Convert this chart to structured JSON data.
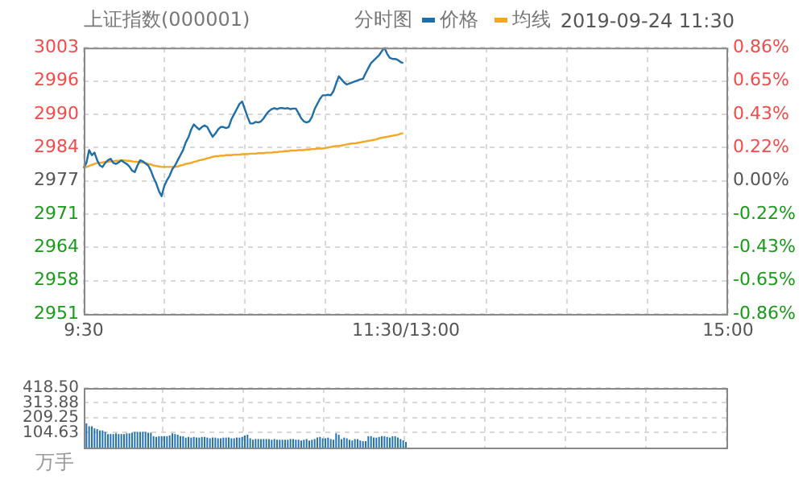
{
  "chart_data": [
    {
      "type": "line",
      "title": "上证指数(000001)",
      "subtitle": "分时图",
      "annotations": [
        "2019-09-24 11:30"
      ],
      "legend": "top right",
      "grid": true,
      "marker": "none",
      "categories": [
        "9:30",
        null,
        null,
        null,
        null,
        null,
        null,
        null,
        null,
        null,
        null,
        null,
        null,
        null,
        null,
        null,
        null,
        null,
        null,
        null,
        null,
        null,
        null,
        null,
        null,
        null,
        null,
        null,
        null,
        null,
        null,
        null,
        null,
        null,
        null,
        null,
        null,
        null,
        null,
        null,
        null,
        null,
        null,
        null,
        null,
        null,
        null,
        null,
        null,
        null,
        null,
        null,
        null,
        null,
        null,
        null,
        null,
        null,
        null,
        null,
        null,
        null,
        null,
        null,
        null,
        null,
        null,
        null,
        null,
        null,
        null,
        null,
        null,
        null,
        null,
        null,
        null,
        null,
        null,
        null,
        null,
        null,
        null,
        null,
        null,
        null,
        null,
        null,
        null,
        null,
        null,
        null,
        null,
        null,
        null,
        null,
        null,
        null,
        null,
        null,
        null,
        null,
        null,
        null,
        null,
        null,
        null,
        null,
        null,
        null,
        null,
        null,
        null,
        null,
        null,
        null,
        null,
        null,
        null,
        null,
        "11:30/13:00",
        null,
        null,
        null,
        null,
        null,
        null,
        null,
        null,
        null,
        null,
        null,
        null,
        null,
        null,
        null,
        null,
        null,
        null,
        null,
        null,
        null,
        null,
        null,
        null,
        null,
        null,
        null,
        null,
        null,
        null,
        null,
        null,
        null,
        null,
        null,
        null,
        null,
        null,
        null,
        null,
        null,
        null,
        null,
        null,
        null,
        null,
        null,
        null,
        null,
        null,
        null,
        null,
        null,
        null,
        null,
        null,
        null,
        null,
        null,
        null,
        null,
        null,
        null,
        null,
        null,
        null,
        null,
        null,
        null,
        null,
        null,
        null,
        null,
        null,
        null,
        null,
        null,
        null,
        null,
        null,
        null,
        null,
        null,
        null,
        null,
        null,
        null,
        null,
        null,
        null,
        null,
        null,
        null,
        null,
        null,
        null,
        null,
        null,
        null,
        null,
        null,
        null,
        null,
        null,
        null,
        null,
        null,
        null,
        null,
        null,
        null,
        null,
        null,
        null,
        null,
        null,
        null,
        null,
        null,
        "15:00"
      ],
      "ylim": [
        2951,
        3003
      ],
      "yticks": [
        2951,
        {
          "value": 2957.5,
          "label": "2958"
        },
        2964,
        {
          "value": 2970.5,
          "label": "2971"
        },
        2977,
        {
          "value": 2983.5,
          "label": "2984"
        },
        2990,
        {
          "value": 2996.5,
          "label": "2996"
        },
        3003
      ],
      "y2lim": [
        -0.86,
        0.86
      ],
      "y2ticks": [
        {
          "value": -0.86,
          "label": "-0.86%"
        },
        {
          "value": -0.645,
          "label": "-0.65%"
        },
        {
          "value": -0.43,
          "label": "-0.43%"
        },
        {
          "value": -0.215,
          "label": "-0.22%"
        },
        {
          "value": 0,
          "label": "0.00%"
        },
        {
          "value": 0.215,
          "label": "0.22%"
        },
        {
          "value": 0.43,
          "label": "0.43%"
        },
        {
          "value": 0.645,
          "label": "0.65%"
        },
        {
          "value": 0.86,
          "label": "0.86%"
        }
      ],
      "series": [
        {
          "name": "价格",
          "color": "#1f6ea8",
          "values": [
            2979.5,
            2980.5,
            2983,
            2982,
            2982.5,
            2981,
            2980,
            2979.7,
            2980.5,
            2981,
            2981.3,
            2980.5,
            2980.3,
            2980.6,
            2981,
            2980.6,
            2980.3,
            2979.8,
            2979,
            2978.7,
            2980,
            2981,
            2980.8,
            2980.4,
            2980,
            2979,
            2977.6,
            2976.5,
            2975,
            2974,
            2976,
            2977.1,
            2978,
            2979.3,
            2980,
            2981,
            2982,
            2983,
            2984.5,
            2985.5,
            2987,
            2988,
            2987.5,
            2987,
            2987.5,
            2987.8,
            2987.5,
            2986.5,
            2985.6,
            2986.2,
            2987,
            2987.5,
            2987.5,
            2987.3,
            2987.5,
            2989,
            2990,
            2991,
            2992,
            2992.5,
            2991,
            2989.5,
            2988.2,
            2988.2,
            2988.5,
            2988.4,
            2988.6,
            2989.2,
            2990,
            2990.6,
            2991,
            2991.2,
            2991,
            2991.2,
            2991.2,
            2991.1,
            2991.2,
            2991,
            2991.1,
            2991.1,
            2990.2,
            2989.2,
            2988.6,
            2988.4,
            2988.6,
            2989.5,
            2991,
            2992,
            2993,
            2993.7,
            2993.7,
            2993.8,
            2993.7,
            2994.5,
            2996,
            2997.4,
            2996.8,
            2996.2,
            2995.8,
            2996,
            2996.2,
            2996.4,
            2996.6,
            2996.8,
            2996.9,
            2998,
            2999,
            3000,
            3000.5,
            3001,
            3001.5,
            3002.3,
            3003,
            3001.8,
            3001,
            3000.8,
            3000.8,
            3000.6,
            3000.2,
            3000,
            null,
            null,
            null,
            null,
            null,
            null,
            null,
            null,
            null,
            null,
            null,
            null,
            null,
            null,
            null,
            null,
            null,
            null,
            null,
            null,
            null,
            null,
            null,
            null,
            null,
            null,
            null,
            null,
            null,
            null,
            null,
            null,
            null,
            null,
            null,
            null,
            null,
            null,
            null,
            null,
            null,
            null,
            null,
            null,
            null,
            null,
            null,
            null,
            null,
            null,
            null,
            null,
            null,
            null,
            null,
            null,
            null,
            null,
            null,
            null,
            null,
            null,
            null,
            null,
            null,
            null,
            null,
            null,
            null,
            null,
            null,
            null,
            null,
            null,
            null,
            null,
            null,
            null,
            null,
            null,
            null,
            null,
            null,
            null,
            null,
            null,
            null,
            null,
            null,
            null,
            null,
            null,
            null,
            null,
            null,
            null,
            null,
            null,
            null,
            null,
            null,
            null,
            null,
            null,
            null,
            null,
            null,
            null,
            null,
            null,
            null,
            null,
            null,
            null,
            null,
            null,
            null,
            null,
            null,
            null,
            null
          ]
        },
        {
          "name": "均线",
          "color": "#f5a623",
          "values": [
            2979.5,
            2979.7,
            2979.9,
            2980.1,
            2980.3,
            2980.5,
            2980.5,
            2980.6,
            2980.7,
            2980.7,
            2980.8,
            2980.8,
            2980.9,
            2980.9,
            2981,
            2981,
            2980.9,
            2980.9,
            2980.8,
            2980.7,
            2980.7,
            2980.6,
            2980.6,
            2980.5,
            2980.3,
            2980.2,
            2980,
            2979.9,
            2979.8,
            2979.7,
            2979.7,
            2979.7,
            2979.7,
            2979.7,
            2979.7,
            2979.8,
            2980,
            2980.1,
            2980.3,
            2980.4,
            2980.5,
            2980.7,
            2980.8,
            2981,
            2981.1,
            2981.2,
            2981.4,
            2981.5,
            2981.7,
            2981.8,
            2981.8,
            2981.9,
            2981.9,
            2982,
            2982,
            2982,
            2982.1,
            2982.1,
            2982.1,
            2982.2,
            2982.2,
            2982.2,
            2982.3,
            2982.3,
            2982.3,
            2982.4,
            2982.4,
            2982.4,
            2982.5,
            2982.5,
            2982.5,
            2982.6,
            2982.6,
            2982.7,
            2982.7,
            2982.8,
            2982.8,
            2982.9,
            2982.9,
            2982.9,
            2983,
            2983,
            2983,
            2983.1,
            2983.1,
            2983.2,
            2983.2,
            2983.3,
            2983.3,
            2983.3,
            2983.4,
            2983.5,
            2983.6,
            2983.7,
            2983.8,
            2983.8,
            2983.9,
            2984,
            2984.1,
            2984.2,
            2984.3,
            2984.3,
            2984.4,
            2984.5,
            2984.6,
            2984.7,
            2984.8,
            2984.9,
            2985,
            2985.1,
            2985.3,
            2985.4,
            2985.5,
            2985.6,
            2985.7,
            2985.8,
            2985.9,
            2986,
            2986.2,
            2986.3,
            null,
            null,
            null,
            null,
            null,
            null,
            null,
            null,
            null,
            null,
            null,
            null,
            null,
            null,
            null,
            null,
            null,
            null,
            null,
            null,
            null,
            null,
            null,
            null,
            null,
            null,
            null,
            null,
            null,
            null,
            null,
            null,
            null,
            null,
            null,
            null,
            null,
            null,
            null,
            null,
            null,
            null,
            null,
            null,
            null,
            null,
            null,
            null,
            null,
            null,
            null,
            null,
            null,
            null,
            null,
            null,
            null,
            null,
            null,
            null,
            null,
            null,
            null,
            null,
            null,
            null,
            null,
            null,
            null,
            null,
            null,
            null,
            null,
            null,
            null,
            null,
            null,
            null,
            null,
            null,
            null,
            null,
            null,
            null,
            null,
            null,
            null,
            null,
            null,
            null,
            null,
            null,
            null,
            null,
            null,
            null,
            null,
            null,
            null,
            null,
            null,
            null,
            null,
            null,
            null,
            null,
            null,
            null,
            null,
            null,
            null,
            null,
            null,
            null,
            null,
            null,
            null,
            null,
            null,
            null,
            null
          ]
        }
      ]
    },
    {
      "type": "bar",
      "ylabel": "万手",
      "grid": true,
      "tick_labels": "y",
      "color": "#2474ad",
      "categories": [
        null,
        null,
        null,
        null,
        null,
        null,
        null,
        null,
        null,
        null,
        null,
        null,
        null,
        null,
        null,
        null,
        null,
        null,
        null,
        null,
        null,
        null,
        null,
        null,
        null,
        null,
        null,
        null,
        null,
        null,
        null,
        null,
        null,
        null,
        null,
        null,
        null,
        null,
        null,
        null,
        null,
        null,
        null,
        null,
        null,
        null,
        null,
        null,
        null,
        null,
        null,
        null,
        null,
        null,
        null,
        null,
        null,
        null,
        null,
        null,
        null,
        null,
        null,
        null,
        null,
        null,
        null,
        null,
        null,
        null,
        null,
        null,
        null,
        null,
        null,
        null,
        null,
        null,
        null,
        null,
        null,
        null,
        null,
        null,
        null,
        null,
        null,
        null,
        null,
        null,
        null,
        null,
        null,
        null,
        null,
        null,
        null,
        null,
        null,
        null,
        null,
        null,
        null,
        null,
        null,
        null,
        null,
        null,
        null,
        null,
        null,
        null,
        null,
        null,
        null,
        null,
        null,
        null,
        null,
        null,
        null,
        null,
        null,
        null,
        null,
        null,
        null,
        null,
        null,
        null,
        null,
        null,
        null,
        null,
        null,
        null,
        null,
        null,
        null,
        null,
        null,
        null,
        null,
        null,
        null,
        null,
        null,
        null,
        null,
        null,
        null,
        null,
        null,
        null,
        null,
        null,
        null,
        null,
        null,
        null,
        null,
        null,
        null,
        null,
        null,
        null,
        null,
        null,
        null,
        null,
        null,
        null,
        null,
        null,
        null,
        null,
        null,
        null,
        null,
        null,
        null,
        null,
        null,
        null,
        null,
        null,
        null,
        null,
        null,
        null,
        null,
        null,
        null,
        null,
        null,
        null,
        null,
        null,
        null,
        null,
        null,
        null,
        null,
        null,
        null,
        null,
        null,
        null,
        null,
        null,
        null,
        null,
        null,
        null,
        null,
        null,
        null,
        null,
        null,
        null,
        null,
        null,
        null,
        null,
        null,
        null,
        null,
        null,
        null,
        null,
        null,
        null,
        null,
        null,
        null,
        null,
        null,
        null,
        null,
        null,
        null
      ],
      "ylim": [
        0,
        418.5
      ],
      "yticks": [
        104.63,
        209.25,
        313.88,
        {
          "value": 418.5,
          "label": "418.50"
        }
      ],
      "values": [
        null,
        170,
        150,
        150,
        135,
        130,
        120,
        120,
        110,
        95,
        95,
        95,
        100,
        95,
        95,
        95,
        100,
        100,
        105,
        110,
        110,
        110,
        110,
        110,
        105,
        105,
        80,
        75,
        80,
        80,
        80,
        80,
        85,
        100,
        95,
        90,
        80,
        80,
        70,
        75,
        70,
        75,
        70,
        70,
        75,
        75,
        70,
        65,
        70,
        70,
        65,
        65,
        70,
        70,
        70,
        65,
        65,
        70,
        70,
        75,
        85,
        90,
        65,
        55,
        60,
        60,
        60,
        60,
        60,
        60,
        55,
        60,
        55,
        55,
        55,
        55,
        55,
        60,
        60,
        55,
        55,
        50,
        55,
        60,
        50,
        55,
        60,
        70,
        75,
        65,
        65,
        70,
        60,
        55,
        100,
        90,
        60,
        70,
        65,
        55,
        50,
        60,
        60,
        50,
        45,
        45,
        80,
        80,
        70,
        70,
        75,
        80,
        80,
        75,
        70,
        80,
        80,
        70,
        60,
        50,
        40,
        null,
        null,
        null,
        null,
        null,
        null,
        null,
        null,
        null,
        null,
        null,
        null,
        null,
        null,
        null,
        null,
        null,
        null,
        null,
        null,
        null,
        null,
        null,
        null,
        null,
        null,
        null,
        null,
        null,
        null,
        null,
        null,
        null,
        null,
        null,
        null,
        null,
        null,
        null,
        null,
        null,
        null,
        null,
        null,
        null,
        null,
        null,
        null,
        null,
        null,
        null,
        null,
        null,
        null,
        null,
        null,
        null,
        null,
        null,
        null,
        null,
        null,
        null,
        null,
        null,
        null,
        null,
        null,
        null,
        null,
        null,
        null,
        null,
        null,
        null,
        null,
        null,
        null,
        null,
        null,
        null,
        null,
        null,
        null,
        null,
        null,
        null,
        null,
        null,
        null,
        null,
        null,
        null,
        null,
        null,
        null,
        null,
        null,
        null,
        null,
        null,
        null,
        null,
        null,
        null,
        null,
        null,
        null,
        null,
        null,
        null,
        null,
        null,
        null,
        null,
        null,
        null,
        null,
        null,
        null
      ]
    }
  ]
}
